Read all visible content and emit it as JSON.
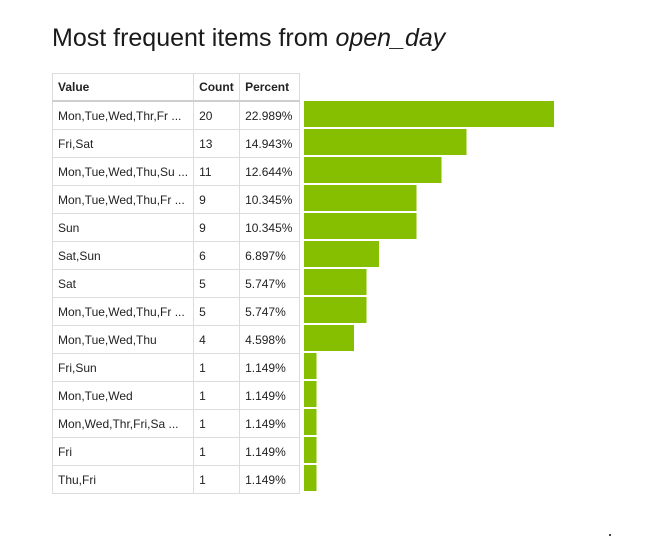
{
  "title": {
    "prefix": "Most frequent items from ",
    "field": "open_day"
  },
  "table": {
    "headers": [
      "Value",
      "Count",
      "Percent"
    ],
    "rows": [
      {
        "value": "Mon,Tue,Wed,Thr,Fr ...",
        "count": "20",
        "percent": "22.989%"
      },
      {
        "value": "Fri,Sat",
        "count": "13",
        "percent": "14.943%"
      },
      {
        "value": "Mon,Tue,Wed,Thu,Su ...",
        "count": "11",
        "percent": "12.644%"
      },
      {
        "value": "Mon,Tue,Wed,Thu,Fr ...",
        "count": "9",
        "percent": "10.345%"
      },
      {
        "value": "Sun",
        "count": "9",
        "percent": "10.345%"
      },
      {
        "value": "Sat,Sun",
        "count": "6",
        "percent": "6.897%"
      },
      {
        "value": "Sat",
        "count": "5",
        "percent": "5.747%"
      },
      {
        "value": "Mon,Tue,Wed,Thu,Fr ...",
        "count": "5",
        "percent": "5.747%"
      },
      {
        "value": "Mon,Tue,Wed,Thu",
        "count": "4",
        "percent": "4.598%"
      },
      {
        "value": "Fri,Sun",
        "count": "1",
        "percent": "1.149%"
      },
      {
        "value": "Mon,Tue,Wed",
        "count": "1",
        "percent": "1.149%"
      },
      {
        "value": "Mon,Wed,Thr,Fri,Sa ...",
        "count": "1",
        "percent": "1.149%"
      },
      {
        "value": "Fri",
        "count": "1",
        "percent": "1.149%"
      },
      {
        "value": "Thu,Fri",
        "count": "1",
        "percent": "1.149%"
      }
    ]
  },
  "chart_data": {
    "type": "bar",
    "orientation": "horizontal",
    "title": "Most frequent items from open_day",
    "categories": [
      "Mon,Tue,Wed,Thr,Fr ...",
      "Fri,Sat",
      "Mon,Tue,Wed,Thu,Su ...",
      "Mon,Tue,Wed,Thu,Fr ...",
      "Sun",
      "Sat,Sun",
      "Sat",
      "Mon,Tue,Wed,Thu,Fr ...",
      "Mon,Tue,Wed,Thu",
      "Fri,Sun",
      "Mon,Tue,Wed",
      "Mon,Wed,Thr,Fri,Sa ...",
      "Fri",
      "Thu,Fri"
    ],
    "values": [
      20,
      13,
      11,
      9,
      9,
      6,
      5,
      5,
      4,
      1,
      1,
      1,
      1,
      1
    ],
    "percent": [
      22.989,
      14.943,
      12.644,
      10.345,
      10.345,
      6.897,
      5.747,
      5.747,
      4.598,
      1.149,
      1.149,
      1.149,
      1.149,
      1.149
    ],
    "xlabel": "",
    "ylabel": "",
    "grid": false,
    "legend": "none",
    "bar_color": "#86bf00"
  }
}
